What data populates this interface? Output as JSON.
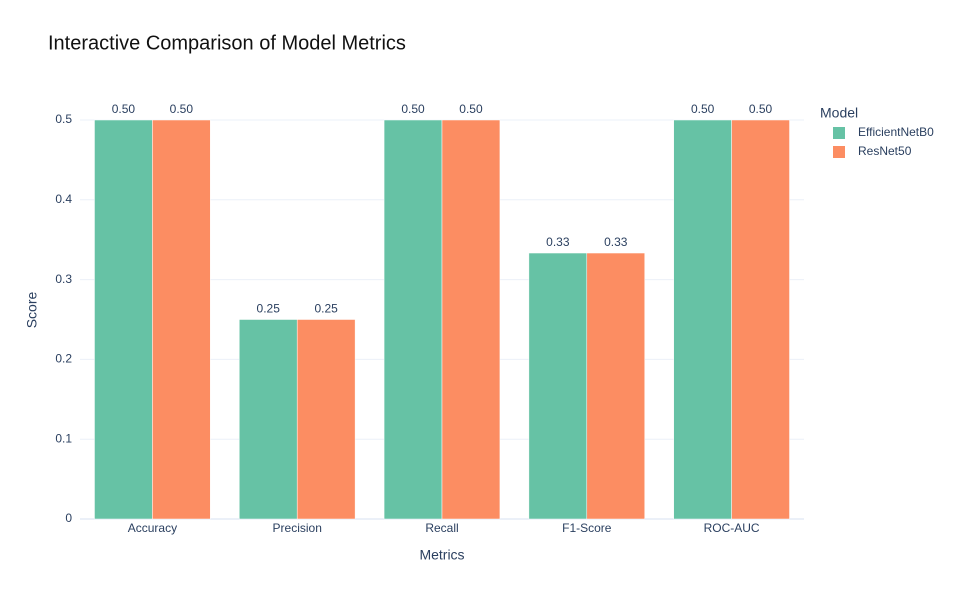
{
  "chart_data": {
    "type": "bar",
    "title": "Interactive Comparison of Model Metrics",
    "x_label": "Metrics",
    "y_label": "Score",
    "legend_title": "Model",
    "categories": [
      "Accuracy",
      "Precision",
      "Recall",
      "F1-Score",
      "ROC-AUC"
    ],
    "series": [
      {
        "name": "EfficientNetB0",
        "color": "#66c2a5",
        "values": [
          0.5,
          0.25,
          0.5,
          0.3333,
          0.5
        ],
        "value_labels": [
          "0.50",
          "0.25",
          "0.50",
          "0.33",
          "0.50"
        ]
      },
      {
        "name": "ResNet50",
        "color": "#fc8d62",
        "values": [
          0.5,
          0.25,
          0.5,
          0.3333,
          0.5
        ],
        "value_labels": [
          "0.50",
          "0.25",
          "0.50",
          "0.33",
          "0.50"
        ]
      }
    ],
    "ylim": [
      0,
      0.5
    ],
    "yticks": [
      0,
      0.1,
      0.2,
      0.3,
      0.4,
      0.5
    ],
    "grid": true,
    "legend": "right"
  }
}
